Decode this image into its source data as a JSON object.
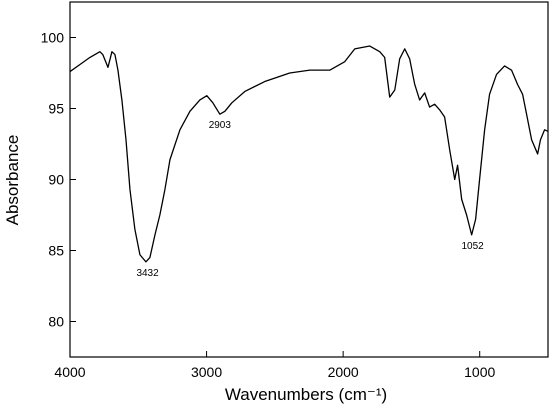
{
  "chart_data": {
    "type": "line",
    "x_label": "Wavenumbers (cm⁻¹)",
    "y_label": "Absorbance",
    "xlim": [
      4000,
      500
    ],
    "ylim": [
      77.5,
      102.5
    ],
    "xticks": [
      4000,
      3000,
      2000,
      1000
    ],
    "yticks": [
      80,
      85,
      90,
      95,
      100
    ],
    "color": "#000000",
    "x": [
      4000,
      3927,
      3854,
      3781,
      3760,
      3722,
      3693,
      3671,
      3649,
      3620,
      3590,
      3561,
      3525,
      3488,
      3444,
      3415,
      3378,
      3342,
      3305,
      3268,
      3195,
      3122,
      3049,
      2998,
      2954,
      2903,
      2866,
      2815,
      2720,
      2574,
      2391,
      2244,
      2098,
      1988,
      1915,
      1805,
      1732,
      1696,
      1659,
      1622,
      1586,
      1549,
      1513,
      1476,
      1440,
      1403,
      1367,
      1330,
      1293,
      1257,
      1220,
      1183,
      1162,
      1132,
      1096,
      1059,
      1030,
      1001,
      964,
      928,
      877,
      818,
      767,
      723,
      686,
      657,
      620,
      576,
      555,
      525,
      503
    ],
    "values": [
      97.6,
      98.1,
      98.6,
      99.0,
      98.8,
      97.9,
      99.0,
      98.8,
      97.7,
      95.6,
      92.8,
      89.3,
      86.5,
      84.7,
      84.2,
      84.5,
      86.1,
      87.5,
      89.3,
      91.4,
      93.5,
      94.8,
      95.6,
      95.9,
      95.4,
      94.6,
      94.8,
      95.4,
      96.2,
      96.9,
      97.5,
      97.7,
      97.7,
      98.3,
      99.2,
      99.4,
      99.0,
      98.6,
      95.8,
      96.3,
      98.5,
      99.2,
      98.5,
      96.7,
      95.6,
      96.1,
      95.1,
      95.3,
      94.9,
      94.4,
      92.1,
      90.0,
      91.0,
      88.6,
      87.5,
      86.1,
      87.2,
      90.0,
      93.5,
      96.0,
      97.4,
      98.0,
      97.7,
      96.7,
      96.0,
      94.6,
      92.8,
      91.8,
      92.8,
      93.5,
      93.4
    ],
    "annotations": [
      {
        "text": "3432",
        "x": 3432,
        "y": 84.2
      },
      {
        "text": "2903",
        "x": 2903,
        "y": 94.6
      },
      {
        "text": "1052",
        "x": 1052,
        "y": 86.1
      }
    ]
  }
}
